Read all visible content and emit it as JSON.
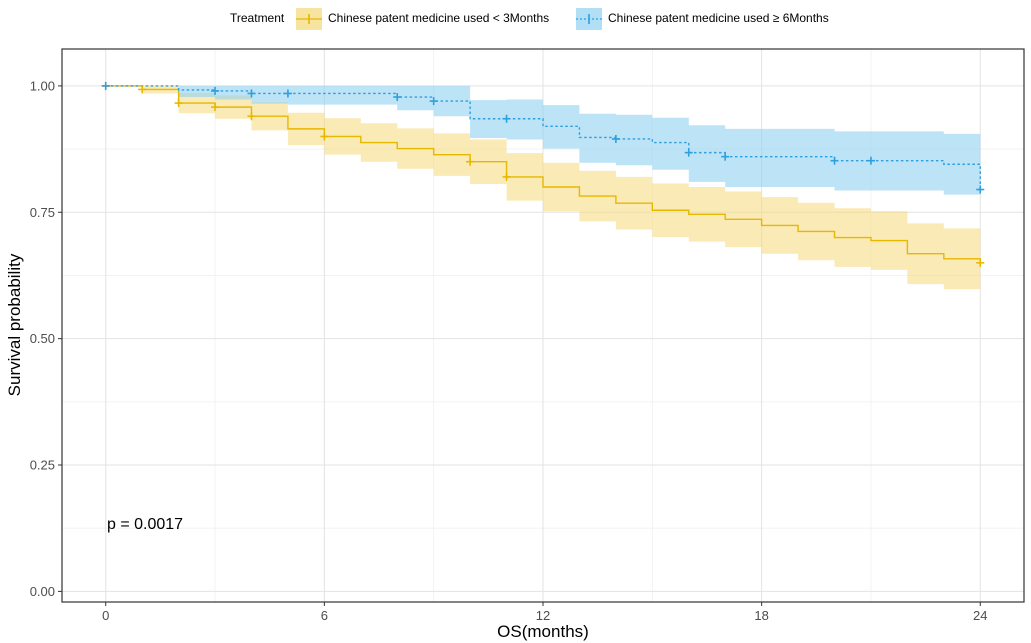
{
  "chart_data": {
    "type": "line",
    "subtype": "kaplan-meier",
    "xlabel": "OS(months)",
    "ylabel": "Survival probability",
    "xlim": [
      -1.2,
      25.2
    ],
    "ylim": [
      -0.021,
      1.073
    ],
    "xticks": [
      0,
      6,
      12,
      18,
      24
    ],
    "xtick_labels": [
      "0",
      "6",
      "12",
      "18",
      "24"
    ],
    "yticks": [
      0,
      0.25,
      0.5,
      0.75,
      1
    ],
    "ytick_labels": [
      "0.00",
      "0.25",
      "0.50",
      "0.75",
      "1.00"
    ],
    "legend": {
      "title": "Treatment",
      "position": "top",
      "entries": [
        "Chinese patent medicine used < 3Months",
        "Chinese patent medicine used ≥ 6Months"
      ]
    },
    "annotation": "p = 0.0017",
    "grid": true,
    "series": [
      {
        "name": "Chinese patent medicine used < 3Months",
        "color": "#E7B800",
        "linestyle": "solid",
        "times": [
          0,
          1,
          2,
          3,
          4,
          5,
          6,
          7,
          8,
          9,
          10,
          11,
          12,
          13,
          14,
          15,
          16,
          17,
          18,
          19,
          20,
          21,
          22,
          23,
          24
        ],
        "survival": [
          1.0,
          0.993,
          0.966,
          0.958,
          0.94,
          0.915,
          0.9,
          0.888,
          0.876,
          0.864,
          0.85,
          0.82,
          0.8,
          0.782,
          0.768,
          0.754,
          0.746,
          0.736,
          0.724,
          0.712,
          0.7,
          0.694,
          0.668,
          0.658,
          0.65
        ],
        "lower": [
          1.0,
          0.985,
          0.946,
          0.935,
          0.912,
          0.883,
          0.864,
          0.85,
          0.836,
          0.822,
          0.806,
          0.773,
          0.752,
          0.732,
          0.716,
          0.701,
          0.692,
          0.681,
          0.668,
          0.655,
          0.642,
          0.636,
          0.608,
          0.598,
          0.598
        ],
        "upper": [
          1.0,
          1.0,
          0.986,
          0.981,
          0.968,
          0.947,
          0.936,
          0.926,
          0.916,
          0.906,
          0.894,
          0.867,
          0.848,
          0.832,
          0.82,
          0.807,
          0.8,
          0.791,
          0.78,
          0.769,
          0.758,
          0.752,
          0.728,
          0.718,
          0.718
        ],
        "censor_times": [
          0,
          1,
          2,
          3,
          4,
          6,
          10,
          11,
          24
        ],
        "censor_surv": [
          1.0,
          0.993,
          0.966,
          0.958,
          0.94,
          0.9,
          0.85,
          0.82,
          0.65
        ]
      },
      {
        "name": "Chinese patent medicine used ≥ 6Months",
        "color": "#2E9FDF",
        "linestyle": "dotted",
        "times": [
          0,
          2,
          3,
          4,
          5,
          8,
          9,
          10,
          11,
          12,
          13,
          14,
          15,
          16,
          17,
          18,
          20,
          21,
          23,
          24
        ],
        "survival": [
          1.0,
          0.992,
          0.99,
          0.985,
          0.985,
          0.978,
          0.97,
          0.935,
          0.935,
          0.92,
          0.898,
          0.895,
          0.888,
          0.868,
          0.86,
          0.86,
          0.852,
          0.852,
          0.845,
          0.795
        ],
        "lower": [
          1.0,
          0.978,
          0.973,
          0.965,
          0.963,
          0.952,
          0.94,
          0.897,
          0.894,
          0.876,
          0.848,
          0.843,
          0.834,
          0.81,
          0.8,
          0.8,
          0.793,
          0.793,
          0.785,
          0.785
        ],
        "upper": [
          1.0,
          1.0,
          1.0,
          1.0,
          1.0,
          1.0,
          1.0,
          0.972,
          0.973,
          0.962,
          0.945,
          0.943,
          0.937,
          0.922,
          0.915,
          0.915,
          0.91,
          0.91,
          0.905,
          0.905
        ],
        "censor_times": [
          0,
          3,
          4,
          5,
          8,
          9,
          11,
          14,
          16,
          17,
          20,
          21,
          24
        ],
        "censor_surv": [
          1.0,
          0.99,
          0.985,
          0.985,
          0.978,
          0.97,
          0.935,
          0.895,
          0.868,
          0.86,
          0.852,
          0.852,
          0.795
        ]
      }
    ]
  }
}
